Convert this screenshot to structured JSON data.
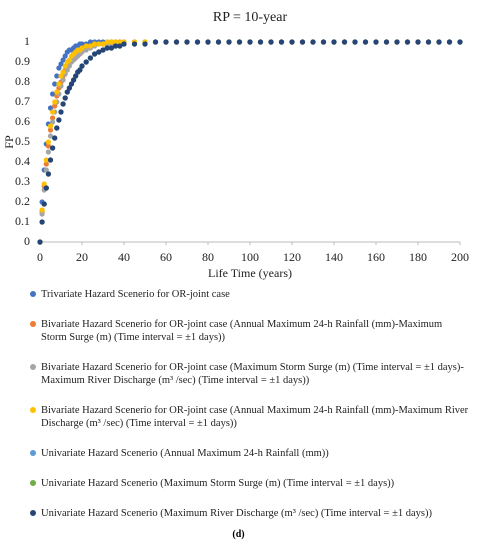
{
  "chart_data": {
    "type": "scatter",
    "title": "RP = 10-year",
    "xlabel": "Life Time (years)",
    "ylabel": "FP",
    "x": [
      0,
      1,
      2,
      3,
      4,
      5,
      6,
      7,
      8,
      9,
      10,
      11,
      12,
      13,
      14,
      15,
      16,
      17,
      18,
      19,
      20,
      22,
      24,
      26,
      28,
      30,
      32,
      34,
      36,
      38,
      40,
      45,
      50,
      55,
      60,
      65,
      70,
      75,
      80,
      85,
      90,
      95,
      100,
      105,
      110,
      115,
      120,
      125,
      130,
      135,
      140,
      145,
      150,
      155,
      160,
      165,
      170,
      175,
      180,
      185,
      190,
      195,
      200
    ],
    "xlim": [
      0,
      200
    ],
    "xticks": [
      0,
      20,
      40,
      60,
      80,
      100,
      120,
      140,
      160,
      180,
      200
    ],
    "ylim": [
      0,
      1
    ],
    "yticks": [
      0,
      0.1,
      0.2,
      0.3,
      0.4,
      0.5,
      0.6,
      0.7,
      0.8,
      0.9,
      1
    ],
    "series": [
      {
        "name": "Trivariate Hazard Scenerio for OR-joint case",
        "color": "#4472c4",
        "values": [
          0,
          0.2,
          0.36,
          0.49,
          0.59,
          0.67,
          0.74,
          0.79,
          0.83,
          0.87,
          0.89,
          0.91,
          0.93,
          0.95,
          0.96,
          0.96,
          0.97,
          0.98,
          0.98,
          0.99,
          0.99,
          0.99,
          1,
          1,
          1,
          1,
          1,
          1,
          1,
          1,
          1,
          1,
          1,
          1,
          1,
          1,
          1,
          1,
          1,
          1,
          1,
          1,
          1,
          1,
          1,
          1,
          1,
          1,
          1,
          1,
          1,
          1,
          1,
          1,
          1,
          1,
          1,
          1,
          1,
          1,
          1,
          1,
          1
        ]
      },
      {
        "name": "Bivariate Hazard Scenerio for OR-joint case (Annual Maximum 24-h Rainfall (mm)-Maximum Storm Surge (m) (Time interval = ±1 days))",
        "color": "#ed7d31",
        "values": [
          0,
          0.15,
          0.28,
          0.39,
          0.48,
          0.56,
          0.62,
          0.68,
          0.73,
          0.77,
          0.8,
          0.83,
          0.86,
          0.88,
          0.9,
          0.91,
          0.93,
          0.94,
          0.95,
          0.95,
          0.96,
          0.97,
          0.98,
          0.99,
          0.99,
          0.99,
          0.99,
          1,
          1,
          1,
          1,
          1,
          1,
          1,
          1,
          1,
          1,
          1,
          1,
          1,
          1,
          1,
          1,
          1,
          1,
          1,
          1,
          1,
          1,
          1,
          1,
          1,
          1,
          1,
          1,
          1,
          1,
          1,
          1,
          1,
          1,
          1,
          1
        ]
      },
      {
        "name": "Bivariate Hazard Scenerio for OR-joint case (Maximum Storm Surge (m) (Time interval = ±1 days)-Maximum River Discharge (m³ /sec) (Time interval = ±1 days))",
        "color": "#a5a5a5",
        "values": [
          0,
          0.14,
          0.26,
          0.36,
          0.45,
          0.53,
          0.6,
          0.65,
          0.7,
          0.74,
          0.78,
          0.81,
          0.84,
          0.86,
          0.88,
          0.9,
          0.91,
          0.92,
          0.93,
          0.94,
          0.95,
          0.96,
          0.97,
          0.98,
          0.99,
          0.99,
          0.99,
          0.99,
          1,
          1,
          1,
          1,
          1,
          1,
          1,
          1,
          1,
          1,
          1,
          1,
          1,
          1,
          1,
          1,
          1,
          1,
          1,
          1,
          1,
          1,
          1,
          1,
          1,
          1,
          1,
          1,
          1,
          1,
          1,
          1,
          1,
          1,
          1
        ]
      },
      {
        "name": "Bivariate Hazard Scenerio for OR-joint case (Annual Maximum 24-h Rainfall (mm)-Maximum River Discharge (m³ /sec) (Time interval = ±1 days))",
        "color": "#ffc000",
        "values": [
          0,
          0.16,
          0.29,
          0.41,
          0.5,
          0.58,
          0.65,
          0.7,
          0.75,
          0.79,
          0.83,
          0.85,
          0.88,
          0.9,
          0.91,
          0.93,
          0.94,
          0.95,
          0.96,
          0.96,
          0.97,
          0.98,
          0.98,
          0.99,
          0.99,
          0.99,
          1,
          1,
          1,
          1,
          1,
          1,
          1,
          1,
          1,
          1,
          1,
          1,
          1,
          1,
          1,
          1,
          1,
          1,
          1,
          1,
          1,
          1,
          1,
          1,
          1,
          1,
          1,
          1,
          1,
          1,
          1,
          1,
          1,
          1,
          1,
          1,
          1
        ]
      },
      {
        "name": "Univariate Hazard Scenerio (Annual Maximum 24-h Rainfall (mm))",
        "color": "#5b9bd5",
        "values": [
          0,
          0.1,
          0.19,
          0.27,
          0.34,
          0.41,
          0.47,
          0.52,
          0.57,
          0.61,
          0.65,
          0.69,
          0.72,
          0.75,
          0.77,
          0.79,
          0.81,
          0.83,
          0.85,
          0.86,
          0.88,
          0.9,
          0.92,
          0.94,
          0.95,
          0.96,
          0.97,
          0.97,
          0.98,
          0.98,
          0.99,
          0.99,
          0.99,
          1,
          1,
          1,
          1,
          1,
          1,
          1,
          1,
          1,
          1,
          1,
          1,
          1,
          1,
          1,
          1,
          1,
          1,
          1,
          1,
          1,
          1,
          1,
          1,
          1,
          1,
          1,
          1,
          1,
          1
        ]
      },
      {
        "name": "Univariate Hazard Scenerio (Maximum Storm Surge (m) (Time interval = ±1 days))",
        "color": "#70ad47",
        "values": [
          0,
          0.1,
          0.19,
          0.27,
          0.34,
          0.41,
          0.47,
          0.52,
          0.57,
          0.61,
          0.65,
          0.69,
          0.72,
          0.75,
          0.77,
          0.79,
          0.81,
          0.83,
          0.85,
          0.86,
          0.88,
          0.9,
          0.92,
          0.94,
          0.95,
          0.96,
          0.97,
          0.97,
          0.98,
          0.98,
          0.99,
          0.99,
          0.99,
          1,
          1,
          1,
          1,
          1,
          1,
          1,
          1,
          1,
          1,
          1,
          1,
          1,
          1,
          1,
          1,
          1,
          1,
          1,
          1,
          1,
          1,
          1,
          1,
          1,
          1,
          1,
          1,
          1,
          1
        ]
      },
      {
        "name": "Univariate Hazard Scenerio (Maximum River Discharge (m³ /sec) (Time interval = ±1 days))",
        "color": "#264478",
        "values": [
          0,
          0.1,
          0.19,
          0.27,
          0.34,
          0.41,
          0.47,
          0.52,
          0.57,
          0.61,
          0.65,
          0.69,
          0.72,
          0.75,
          0.77,
          0.79,
          0.81,
          0.83,
          0.85,
          0.86,
          0.88,
          0.9,
          0.92,
          0.94,
          0.95,
          0.96,
          0.97,
          0.97,
          0.98,
          0.98,
          0.99,
          0.99,
          0.99,
          1,
          1,
          1,
          1,
          1,
          1,
          1,
          1,
          1,
          1,
          1,
          1,
          1,
          1,
          1,
          1,
          1,
          1,
          1,
          1,
          1,
          1,
          1,
          1,
          1,
          1,
          1,
          1,
          1,
          1
        ]
      }
    ],
    "caption": "(d)"
  }
}
